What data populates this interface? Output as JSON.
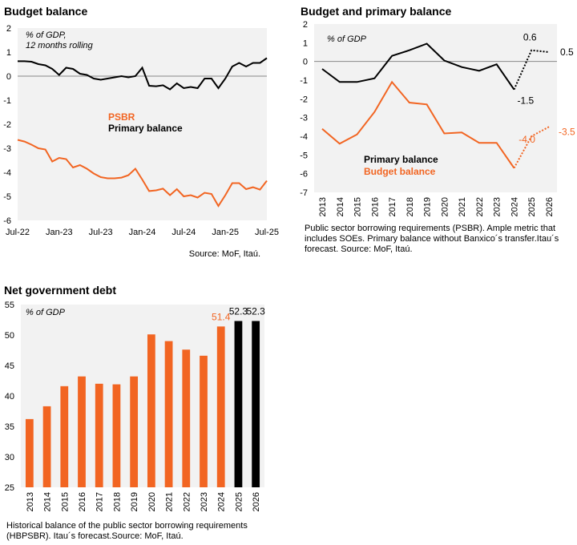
{
  "chart_data": [
    {
      "type": "line",
      "title": "Budget balance",
      "annotation": "% of GDP, 12 months rolling",
      "source": "Source: MoF, Itaú.",
      "x_tick_labels": [
        "Jul-22",
        "Jan-23",
        "Jul-23",
        "Jan-24",
        "Jul-24",
        "Jan-25",
        "Jul-25"
      ],
      "y_ticks": [
        2,
        1,
        0,
        -1,
        -2,
        -3,
        -4,
        -5,
        -6
      ],
      "ylim": [
        -6,
        2
      ],
      "x": [
        "Jul-22",
        "Aug-22",
        "Sep-22",
        "Oct-22",
        "Nov-22",
        "Dec-22",
        "Jan-23",
        "Feb-23",
        "Mar-23",
        "Apr-23",
        "May-23",
        "Jun-23",
        "Jul-23",
        "Aug-23",
        "Sep-23",
        "Oct-23",
        "Nov-23",
        "Dec-23",
        "Jan-24",
        "Feb-24",
        "Mar-24",
        "Apr-24",
        "May-24",
        "Jun-24",
        "Jul-24",
        "Aug-24",
        "Sep-24",
        "Oct-24",
        "Nov-24",
        "Dec-24",
        "Jan-25",
        "Feb-25",
        "Mar-25",
        "Apr-25",
        "May-25",
        "Jun-25",
        "Jul-25"
      ],
      "series": [
        {
          "name": "PSBR",
          "color": "#f26522",
          "values": [
            -2.65,
            -2.72,
            -2.85,
            -3.0,
            -3.05,
            -3.55,
            -3.4,
            -3.45,
            -3.8,
            -3.7,
            -3.85,
            -4.05,
            -4.2,
            -4.25,
            -4.25,
            -4.22,
            -4.12,
            -3.85,
            -4.3,
            -4.78,
            -4.75,
            -4.68,
            -4.95,
            -4.7,
            -5.0,
            -4.95,
            -5.05,
            -4.85,
            -4.9,
            -5.4,
            -4.95,
            -4.45,
            -4.45,
            -4.7,
            -4.62,
            -4.72,
            -4.35
          ]
        },
        {
          "name": "Primary balance",
          "color": "#000000",
          "values": [
            0.62,
            0.62,
            0.6,
            0.5,
            0.45,
            0.3,
            0.05,
            0.35,
            0.3,
            0.1,
            0.05,
            -0.1,
            -0.15,
            -0.1,
            -0.05,
            0.0,
            -0.05,
            0.0,
            0.35,
            -0.4,
            -0.42,
            -0.38,
            -0.55,
            -0.3,
            -0.5,
            -0.45,
            -0.5,
            -0.1,
            -0.1,
            -0.5,
            -0.1,
            0.4,
            0.55,
            0.4,
            0.55,
            0.55,
            0.75
          ]
        }
      ]
    },
    {
      "type": "line",
      "title": "Budget and primary balance",
      "annotation": "% of GDP",
      "note": "Public sector borrowing requirements (PSBR). Ample metric that includes SOEs. Primary balance without Banxico´s transfer.Itau´s forecast. Source: MoF, Itaú.",
      "categories": [
        "2013",
        "2014",
        "2015",
        "2016",
        "2017",
        "2018",
        "2019",
        "2020",
        "2021",
        "2022",
        "2023",
        "2024",
        "2025",
        "2026"
      ],
      "y_ticks": [
        1,
        0,
        -1,
        -2,
        -3,
        -4,
        -5,
        -6,
        -7
      ],
      "ylim": [
        -7,
        2
      ],
      "forecast_from": "2024",
      "series": [
        {
          "name": "Primary balance",
          "color": "#000000",
          "values": [
            -0.4,
            -1.1,
            -1.1,
            -0.9,
            0.3,
            0.6,
            0.95,
            0.05,
            -0.3,
            -0.5,
            -0.15,
            -1.5,
            0.6,
            0.5
          ]
        },
        {
          "name": "Budget balance",
          "color": "#f26522",
          "values": [
            -3.6,
            -4.4,
            -3.9,
            -2.7,
            -1.1,
            -2.2,
            -2.3,
            -3.85,
            -3.8,
            -4.35,
            -4.35,
            -5.7,
            -4.0,
            -3.5
          ]
        }
      ],
      "data_labels": [
        {
          "series": "Primary balance",
          "category": "2024",
          "text": "-1.5"
        },
        {
          "series": "Primary balance",
          "category": "2025",
          "text": "0.6"
        },
        {
          "series": "Primary balance",
          "category": "2026",
          "text": "0.5"
        },
        {
          "series": "Budget balance",
          "category": "2025",
          "text": "-4.0"
        },
        {
          "series": "Budget balance",
          "category": "2026",
          "text": "-3.5"
        }
      ]
    },
    {
      "type": "bar",
      "title": "Net government debt",
      "annotation": "% of GDP",
      "note": "Historical balance of the public sector borrowing requirements (HBPSBR). Itau´s forecast.Source: MoF, Itaú.",
      "categories": [
        "2013",
        "2014",
        "2015",
        "2016",
        "2017",
        "2018",
        "2019",
        "2020",
        "2021",
        "2022",
        "2023",
        "2024",
        "2025",
        "2026"
      ],
      "values": [
        36.2,
        38.3,
        41.6,
        43.2,
        42.0,
        41.9,
        43.2,
        50.1,
        49.0,
        47.6,
        46.6,
        51.4,
        52.3,
        52.3
      ],
      "forecast_from": "2025",
      "colors": {
        "actual": "#f26522",
        "forecast": "#000000"
      },
      "y_ticks": [
        55,
        50,
        45,
        40,
        35,
        30,
        25
      ],
      "ylim": [
        25,
        55
      ],
      "data_labels": [
        {
          "category": "2024",
          "text": "51.4"
        },
        {
          "category": "2025",
          "text": "52.3"
        },
        {
          "category": "2026",
          "text": "52.3"
        }
      ]
    }
  ]
}
